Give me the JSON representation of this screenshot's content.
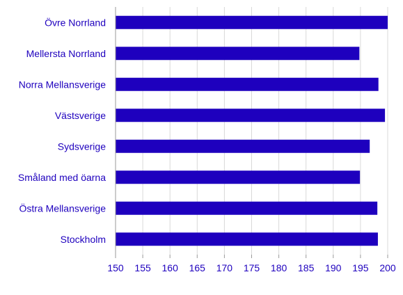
{
  "colors": {
    "bar": "#1E00BE",
    "text": "#1E00BE",
    "grid": "#D9D9D9",
    "axis": "#9A9A9A"
  },
  "chart_data": {
    "type": "bar",
    "orientation": "horizontal",
    "title": "",
    "xlabel": "",
    "ylabel": "",
    "xlim": [
      150,
      200
    ],
    "xticks": [
      150,
      155,
      160,
      165,
      170,
      175,
      180,
      185,
      190,
      195,
      200
    ],
    "grid": "vertical",
    "categories": [
      "Övre Norrland",
      "Mellersta Norrland",
      "Norra Mellansverige",
      "Västsverige",
      "Sydsverige",
      "Småland med öarna",
      "Östra Mellansverige",
      "Stockholm"
    ],
    "values": [
      200,
      194.8,
      198.3,
      199.5,
      196.7,
      194.9,
      198.1,
      198.2
    ]
  }
}
